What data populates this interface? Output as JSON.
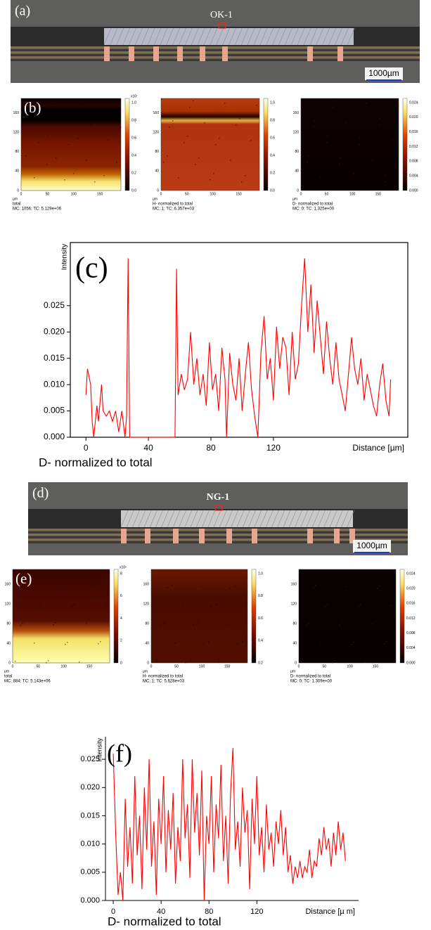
{
  "panels": {
    "a": {
      "label": "(a)",
      "sample": "OK-1",
      "scale_bar": "1000µm"
    },
    "b": {
      "label": "(b)",
      "axis_unit": "µm",
      "x_ticks": [
        0,
        50,
        100,
        150
      ],
      "y_ticks": [
        0,
        40,
        80,
        120,
        160
      ],
      "maps": [
        {
          "caption": "total",
          "stats": "MC: 1056; TC: 5.129e+06",
          "colorbar_exponent": "x10⁷",
          "colorbar_ticks": [
            "0.0",
            "0.2",
            "0.4",
            "0.6",
            "0.8",
            "1.0"
          ]
        },
        {
          "caption": "H- normalized to total",
          "stats": "MC:    1; TC: 6.357e+03",
          "colorbar_ticks": [
            "0.0",
            "0.2",
            "0.4",
            "0.6",
            "0.8",
            "1.0"
          ]
        },
        {
          "caption": "D- normalized to total",
          "stats": "MC:    0; TC: 1.325e+00",
          "colorbar_ticks": [
            "0.000",
            "0.004",
            "0.008",
            "0.012",
            "0.016",
            "0.020",
            "0.024"
          ]
        }
      ]
    },
    "d": {
      "label": "(d)",
      "sample": "NG-1",
      "scale_bar": "1000µm"
    },
    "e": {
      "label": "(e)",
      "axis_unit": "µm",
      "x_ticks": [
        0,
        50,
        100,
        150
      ],
      "y_ticks": [
        0,
        40,
        80,
        120,
        160
      ],
      "maps": [
        {
          "caption": "total",
          "stats": "MC:  884; TC: 5.143e+06",
          "colorbar_exponent": "x10⁶",
          "colorbar_ticks": [
            "0",
            "2",
            "4",
            "6",
            "8"
          ]
        },
        {
          "caption": "H- normalized to total",
          "stats": "MC:    1; TC: 5.628e+03",
          "colorbar_ticks": [
            "0.2",
            "0.4",
            "0.6",
            "0.8",
            "1.0"
          ]
        },
        {
          "caption": "D- normalized to total",
          "stats": "MC:    0; TC: 1.309e+00",
          "colorbar_ticks": [
            "0.000",
            "0.004",
            "0.008",
            "0.012",
            "0.016",
            "0.020",
            "0.024"
          ]
        }
      ]
    }
  },
  "chart_data": [
    {
      "type": "line",
      "panel_label": "(c)",
      "title": "D- normalized to total",
      "x_label": "Distance [µm]",
      "y_label": "Intensity",
      "color": "#ff0000",
      "frame": true,
      "xlim": [
        -10,
        206
      ],
      "ylim": [
        0,
        0.037
      ],
      "xticks": [
        0,
        40,
        80,
        120
      ],
      "yticks": [
        {
          "value": 0,
          "label": "0.000"
        },
        {
          "value": 0.005,
          "label": "0.005"
        },
        {
          "value": 0.01,
          "label": "0.010"
        },
        {
          "value": 0.015,
          "label": "0.015"
        },
        {
          "value": 0.02,
          "label": "0.020"
        },
        {
          "value": 0.025,
          "label": "0.025"
        }
      ],
      "x": [
        0,
        1,
        3,
        4,
        5,
        7,
        8,
        10,
        11,
        13,
        15,
        17,
        19,
        21,
        23,
        25,
        26,
        27,
        28,
        57,
        58,
        59,
        61,
        63,
        65,
        67,
        69,
        71,
        73,
        75,
        77,
        79,
        81,
        83,
        85,
        87,
        89,
        90,
        92,
        94,
        96,
        98,
        100,
        102,
        104,
        106,
        108,
        110,
        112,
        114,
        116,
        118,
        120,
        122,
        124,
        126,
        128,
        130,
        132,
        134,
        136,
        138,
        140,
        142,
        144,
        146,
        148,
        150,
        152,
        154,
        156,
        158,
        160,
        162,
        164,
        166,
        168,
        170,
        172,
        174,
        176,
        178,
        180,
        182,
        184,
        186,
        188,
        190,
        192,
        194,
        195
      ],
      "values": [
        0.008,
        0.013,
        0.01,
        0.003,
        0.0,
        0.006,
        0.003,
        0.01,
        0.005,
        0.004,
        0.005,
        0.003,
        0.005,
        0.001,
        0.005,
        0.0,
        0.004,
        0.034,
        0.0,
        0.0,
        0.032,
        0.008,
        0.012,
        0.009,
        0.011,
        0.02,
        0.01,
        0.015,
        0.008,
        0.012,
        0.006,
        0.018,
        0.009,
        0.012,
        0.005,
        0.017,
        0.011,
        0.0,
        0.016,
        0.01,
        0.007,
        0.015,
        0.005,
        0.012,
        0.018,
        0.009,
        0.004,
        0.0,
        0.016,
        0.023,
        0.011,
        0.015,
        0.007,
        0.021,
        0.013,
        0.019,
        0.017,
        0.008,
        0.02,
        0.011,
        0.014,
        0.025,
        0.034,
        0.02,
        0.029,
        0.016,
        0.026,
        0.019,
        0.012,
        0.022,
        0.015,
        0.01,
        0.018,
        0.011,
        0.008,
        0.005,
        0.012,
        0.019,
        0.013,
        0.01,
        0.015,
        0.007,
        0.012,
        0.009,
        0.006,
        0.004,
        0.01,
        0.014,
        0.007,
        0.004,
        0.011
      ]
    },
    {
      "type": "line",
      "panel_label": "(f)",
      "title": "D- normalized to total",
      "x_label": "Distance [µ m]",
      "y_label": "Intensity",
      "color": "#ff0000",
      "frame": false,
      "xlim": [
        -6.5,
        205
      ],
      "ylim": [
        0,
        0.029
      ],
      "xticks": [
        0,
        40,
        80,
        120
      ],
      "yticks": [
        {
          "value": 0,
          "label": "0.000"
        },
        {
          "value": 0.005,
          "label": "0.005"
        },
        {
          "value": 0.01,
          "label": "0.010"
        },
        {
          "value": 0.015,
          "label": "0.015"
        },
        {
          "value": 0.02,
          "label": "0.020"
        },
        {
          "value": 0.025,
          "label": "0.025"
        }
      ],
      "x": [
        0,
        2,
        4,
        6,
        8,
        10,
        12,
        14,
        16,
        18,
        20,
        22,
        24,
        26,
        28,
        30,
        32,
        34,
        36,
        38,
        40,
        42,
        44,
        46,
        48,
        50,
        52,
        54,
        56,
        58,
        60,
        62,
        64,
        66,
        68,
        70,
        72,
        74,
        76,
        78,
        80,
        82,
        84,
        86,
        88,
        90,
        92,
        94,
        96,
        98,
        100,
        102,
        104,
        106,
        108,
        110,
        112,
        114,
        116,
        118,
        120,
        122,
        124,
        126,
        128,
        130,
        132,
        134,
        136,
        138,
        140,
        142,
        144,
        146,
        148,
        150,
        152,
        154,
        156,
        158,
        160,
        162,
        164,
        166,
        168,
        170,
        172,
        174,
        176,
        178,
        180,
        182,
        184,
        186,
        188,
        190,
        192,
        194
      ],
      "values": [
        0.026,
        0.012,
        0.001,
        0.005,
        0.0,
        0.018,
        0.006,
        0.013,
        0.003,
        0.022,
        0.008,
        0.015,
        0.002,
        0.02,
        0.009,
        0.025,
        0.006,
        0.014,
        0.001,
        0.018,
        0.01,
        0.022,
        0.005,
        0.016,
        0.009,
        0.019,
        0.003,
        0.013,
        0.007,
        0.025,
        0.011,
        0.017,
        0.004,
        0.025,
        0.012,
        0.019,
        0.008,
        0.023,
        0.0,
        0.015,
        0.01,
        0.022,
        0.005,
        0.017,
        0.011,
        0.024,
        0.007,
        0.015,
        0.003,
        0.019,
        0.027,
        0.009,
        0.014,
        0.006,
        0.02,
        0.012,
        0.016,
        0.002,
        0.018,
        0.01,
        0.022,
        0.008,
        0.013,
        0.005,
        0.017,
        0.009,
        0.012,
        0.006,
        0.014,
        0.01,
        0.016,
        0.008,
        0.013,
        0.005,
        0.008,
        0.003,
        0.006,
        0.004,
        0.007,
        0.004,
        0.006,
        0.005,
        0.009,
        0.004,
        0.007,
        0.006,
        0.011,
        0.008,
        0.013,
        0.009,
        0.011,
        0.006,
        0.012,
        0.008,
        0.014,
        0.009,
        0.012,
        0.007
      ]
    }
  ]
}
